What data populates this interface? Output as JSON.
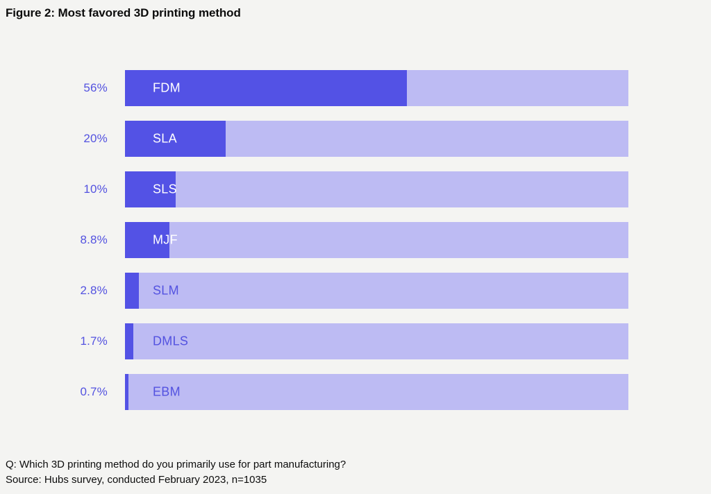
{
  "page": {
    "title": "Figure 2: Most favored 3D printing method"
  },
  "footer": {
    "question": "Q: Which 3D printing method do you primarily use for part manufacturing?",
    "source": "Source: Hubs survey, conducted February 2023, n=1035"
  },
  "colors": {
    "background": "#f4f4f2",
    "bar_fill": "#5352e5",
    "bar_track": "#bdbbf3",
    "value_label_text": "#5352e0",
    "bar_label_on_fill": "#ffffff",
    "bar_label_on_track": "#5352e0",
    "title_text": "#0c0c0c",
    "footer_text": "#0c0c0c"
  },
  "chart_data": {
    "type": "bar",
    "orientation": "horizontal",
    "title": "Figure 2: Most favored 3D printing method",
    "xlabel": "",
    "ylabel": "",
    "xlim": [
      0,
      100
    ],
    "grid": false,
    "legend": false,
    "categories": [
      "FDM",
      "SLA",
      "SLS",
      "MJF",
      "SLM",
      "DMLS",
      "EBM"
    ],
    "values": [
      56,
      20,
      10,
      8.8,
      2.8,
      1.7,
      0.7
    ],
    "value_labels": [
      "56%",
      "20%",
      "10%",
      "8.8%",
      "2.8%",
      "1.7%",
      "0.7%"
    ],
    "label_text_white": [
      true,
      true,
      true,
      true,
      false,
      false,
      false
    ]
  }
}
